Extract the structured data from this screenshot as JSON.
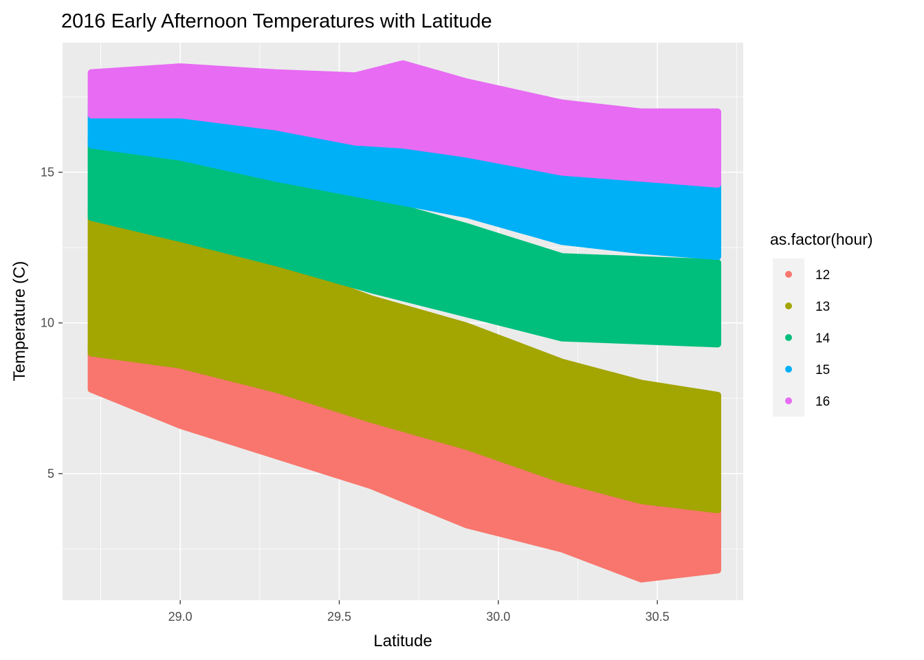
{
  "chart_data": {
    "type": "scatter",
    "title": "2016 Early Afternoon Temperatures with Latitude",
    "xlabel": "Latitude",
    "ylabel": "Temperature (C)",
    "xlim": [
      28.63,
      30.77
    ],
    "ylim": [
      0.8,
      19.3
    ],
    "x_ticks": [
      29.0,
      29.5,
      30.0,
      30.5
    ],
    "x_tick_labels": [
      "29.0",
      "29.5",
      "30.0",
      "30.5"
    ],
    "y_ticks": [
      5,
      10,
      15
    ],
    "y_tick_labels": [
      "5",
      "10",
      "15"
    ],
    "grid": true,
    "legend": {
      "title": "as.factor(hour)",
      "position": "right"
    },
    "series": [
      {
        "name": "12",
        "color": "#F8766D",
        "x": [
          28.72,
          29.0,
          29.3,
          29.6,
          29.9,
          30.2,
          30.45,
          30.69
        ],
        "y_upper": [
          9.2,
          8.7,
          7.9,
          7.2,
          6.3,
          5.5,
          4.8,
          4.3
        ],
        "y_lower": [
          7.8,
          6.6,
          5.6,
          4.6,
          3.3,
          2.5,
          1.5,
          1.8
        ]
      },
      {
        "name": "13",
        "color": "#A3A500",
        "x": [
          28.72,
          29.0,
          29.3,
          29.6,
          29.9,
          30.2,
          30.45,
          30.69
        ],
        "y_upper": [
          13.8,
          12.8,
          12.0,
          10.8,
          9.9,
          8.7,
          8.0,
          7.6
        ],
        "y_lower": [
          9.0,
          8.6,
          7.8,
          6.8,
          5.9,
          4.8,
          4.1,
          3.8
        ]
      },
      {
        "name": "14",
        "color": "#00BF7D",
        "x": [
          28.72,
          29.0,
          29.3,
          29.6,
          29.9,
          30.2,
          30.45,
          30.69
        ],
        "y_upper": [
          16.1,
          15.5,
          14.8,
          14.1,
          13.2,
          12.2,
          12.1,
          12.0
        ],
        "y_lower": [
          13.5,
          12.8,
          12.0,
          11.1,
          10.3,
          9.5,
          9.4,
          9.3
        ]
      },
      {
        "name": "15",
        "color": "#00B0F6",
        "x": [
          28.72,
          29.0,
          29.3,
          29.6,
          29.9,
          30.2,
          30.45,
          30.69
        ],
        "y_upper": [
          17.3,
          17.2,
          16.4,
          15.9,
          15.5,
          15.0,
          14.8,
          14.6
        ],
        "y_lower": [
          15.9,
          15.5,
          14.8,
          14.2,
          13.6,
          12.7,
          12.4,
          12.2
        ]
      },
      {
        "name": "16",
        "color": "#E76BF3",
        "x": [
          28.72,
          29.0,
          29.3,
          29.55,
          29.7,
          29.9,
          30.2,
          30.45,
          30.69
        ],
        "y_upper": [
          18.3,
          18.5,
          18.3,
          18.2,
          18.6,
          18.0,
          17.3,
          17.0,
          17.0
        ],
        "y_lower": [
          16.9,
          16.9,
          16.5,
          16.0,
          15.9,
          15.6,
          15.0,
          14.8,
          14.6
        ]
      }
    ]
  }
}
